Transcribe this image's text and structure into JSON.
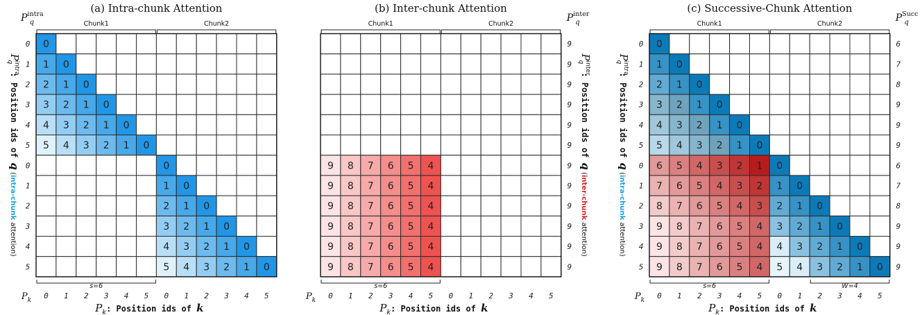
{
  "colors": {
    "intra_light": "#dff1fb",
    "intra_dark": "#2196e6",
    "inter_light": "#fce4e4",
    "inter_dark": "#ef5350",
    "succ_intra_dark": "#0d7ab8",
    "succ_inter_dark": "#b71c1c",
    "grid_border": "#333333",
    "highlight_intra_text": "#1ea3e0",
    "highlight_inter_text": "#d62728"
  },
  "panels": [
    {
      "id": "intra",
      "title": "(a) Intra-chunk Attention",
      "right_label": {
        "main": "P",
        "sub": "q",
        "sup": "intra"
      },
      "chunk_labels": [
        "Chunk1",
        "Chunk2"
      ],
      "row_ids": [
        "0",
        "1",
        "2",
        "3",
        "4",
        "5",
        "0",
        "1",
        "2",
        "3",
        "4",
        "5"
      ],
      "right_ids": [],
      "col_ids": [
        "0",
        "1",
        "2",
        "3",
        "4",
        "5",
        "0",
        "1",
        "2",
        "3",
        "4",
        "5"
      ],
      "y_label": {
        "sub": "q",
        "sup": "intra",
        "mid": ": Position ids of ",
        "var": "q",
        "open": " (",
        "highlight": "intra-chunk",
        "close": " attention)"
      },
      "x_label": {
        "main": "P",
        "sub": "k",
        "mid": ": Position ids of ",
        "var": "k"
      },
      "bottom_brace_label": "s=6",
      "bottom_brace2_label": "",
      "cells": [
        [
          "0",
          "",
          "",
          "",
          "",
          "",
          "",
          "",
          "",
          "",
          "",
          ""
        ],
        [
          "1",
          "0",
          "",
          "",
          "",
          "",
          "",
          "",
          "",
          "",
          "",
          ""
        ],
        [
          "2",
          "1",
          "0",
          "",
          "",
          "",
          "",
          "",
          "",
          "",
          "",
          ""
        ],
        [
          "3",
          "2",
          "1",
          "0",
          "",
          "",
          "",
          "",
          "",
          "",
          "",
          ""
        ],
        [
          "4",
          "3",
          "2",
          "1",
          "0",
          "",
          "",
          "",
          "",
          "",
          "",
          ""
        ],
        [
          "5",
          "4",
          "3",
          "2",
          "1",
          "0",
          "",
          "",
          "",
          "",
          "",
          ""
        ],
        [
          "",
          "",
          "",
          "",
          "",
          "",
          "0",
          "",
          "",
          "",
          "",
          ""
        ],
        [
          "",
          "",
          "",
          "",
          "",
          "",
          "1",
          "0",
          "",
          "",
          "",
          ""
        ],
        [
          "",
          "",
          "",
          "",
          "",
          "",
          "2",
          "1",
          "0",
          "",
          "",
          ""
        ],
        [
          "",
          "",
          "",
          "",
          "",
          "",
          "3",
          "2",
          "1",
          "0",
          "",
          ""
        ],
        [
          "",
          "",
          "",
          "",
          "",
          "",
          "4",
          "3",
          "2",
          "1",
          "0",
          ""
        ],
        [
          "",
          "",
          "",
          "",
          "",
          "",
          "5",
          "4",
          "3",
          "2",
          "1",
          "0"
        ]
      ]
    },
    {
      "id": "inter",
      "title": "(b) Inter-chunk Attention",
      "right_label": {
        "main": "P",
        "sub": "q",
        "sup": "inter"
      },
      "chunk_labels": [
        "Chunk1",
        "Chunk2"
      ],
      "row_ids": [],
      "right_ids": [
        "9",
        "9",
        "9",
        "9",
        "9",
        "9",
        "9",
        "9",
        "9",
        "9",
        "9",
        "9"
      ],
      "col_ids": [
        "0",
        "1",
        "2",
        "3",
        "4",
        "5",
        "0",
        "1",
        "2",
        "3",
        "4",
        "5"
      ],
      "y_label": {
        "sub": "q",
        "sup": "inter",
        "mid": ": Position ids of ",
        "var": "q",
        "open": " (",
        "highlight": "inter-chunk",
        "close": " attention)"
      },
      "x_label": {
        "main": "P",
        "sub": "k",
        "mid": ": Position ids of ",
        "var": "k"
      },
      "bottom_brace_label": "s=6",
      "bottom_brace2_label": "",
      "cells": [
        [
          "",
          "",
          "",
          "",
          "",
          "",
          "",
          "",
          "",
          "",
          "",
          ""
        ],
        [
          "",
          "",
          "",
          "",
          "",
          "",
          "",
          "",
          "",
          "",
          "",
          ""
        ],
        [
          "",
          "",
          "",
          "",
          "",
          "",
          "",
          "",
          "",
          "",
          "",
          ""
        ],
        [
          "",
          "",
          "",
          "",
          "",
          "",
          "",
          "",
          "",
          "",
          "",
          ""
        ],
        [
          "",
          "",
          "",
          "",
          "",
          "",
          "",
          "",
          "",
          "",
          "",
          ""
        ],
        [
          "",
          "",
          "",
          "",
          "",
          "",
          "",
          "",
          "",
          "",
          "",
          ""
        ],
        [
          "9",
          "8",
          "7",
          "6",
          "5",
          "4",
          "",
          "",
          "",
          "",
          "",
          ""
        ],
        [
          "9",
          "8",
          "7",
          "6",
          "5",
          "4",
          "",
          "",
          "",
          "",
          "",
          ""
        ],
        [
          "9",
          "8",
          "7",
          "6",
          "5",
          "4",
          "",
          "",
          "",
          "",
          "",
          ""
        ],
        [
          "9",
          "8",
          "7",
          "6",
          "5",
          "4",
          "",
          "",
          "",
          "",
          "",
          ""
        ],
        [
          "9",
          "8",
          "7",
          "6",
          "5",
          "4",
          "",
          "",
          "",
          "",
          "",
          ""
        ],
        [
          "9",
          "8",
          "7",
          "6",
          "5",
          "4",
          "",
          "",
          "",
          "",
          "",
          ""
        ]
      ]
    },
    {
      "id": "succ",
      "title": "(c) Successive-Chunk Attention",
      "right_label": {
        "main": "P",
        "sub": "q",
        "sup": "Succ"
      },
      "chunk_labels": [
        "Chunk1",
        "Chunk2"
      ],
      "row_ids": [
        "0",
        "1",
        "2",
        "3",
        "4",
        "5",
        "0",
        "1",
        "2",
        "3",
        "4",
        "5"
      ],
      "right_ids": [
        "6",
        "7",
        "8",
        "9",
        "9",
        "9",
        "6",
        "7",
        "8",
        "9",
        "9",
        "9"
      ],
      "col_ids": [
        "0",
        "1",
        "2",
        "3",
        "4",
        "5",
        "0",
        "1",
        "2",
        "3",
        "4",
        "5"
      ],
      "y_label": {
        "sub": "q",
        "sup": "intra",
        "mid": ": Position ids of ",
        "var": "q",
        "open": " (",
        "highlight": "intra-chunk",
        "close": " attention)"
      },
      "x_label": {
        "main": "P",
        "sub": "k",
        "mid": ": Position ids of ",
        "var": "k"
      },
      "bottom_brace_label": "s=6",
      "bottom_brace2_label": "W=4",
      "cells": [
        [
          "0",
          "",
          "",
          "",
          "",
          "",
          "",
          "",
          "",
          "",
          "",
          ""
        ],
        [
          "1",
          "0",
          "",
          "",
          "",
          "",
          "",
          "",
          "",
          "",
          "",
          ""
        ],
        [
          "2",
          "1",
          "0",
          "",
          "",
          "",
          "",
          "",
          "",
          "",
          "",
          ""
        ],
        [
          "3",
          "2",
          "1",
          "0",
          "",
          "",
          "",
          "",
          "",
          "",
          "",
          ""
        ],
        [
          "4",
          "3",
          "2",
          "1",
          "0",
          "",
          "",
          "",
          "",
          "",
          "",
          ""
        ],
        [
          "5",
          "4",
          "3",
          "2",
          "1",
          "0",
          "",
          "",
          "",
          "",
          "",
          ""
        ],
        [
          "6",
          "5",
          "4",
          "3",
          "2",
          "1",
          "0",
          "",
          "",
          "",
          "",
          ""
        ],
        [
          "7",
          "6",
          "5",
          "4",
          "3",
          "2",
          "1",
          "0",
          "",
          "",
          "",
          ""
        ],
        [
          "8",
          "7",
          "6",
          "5",
          "4",
          "3",
          "2",
          "1",
          "0",
          "",
          "",
          ""
        ],
        [
          "9",
          "8",
          "7",
          "6",
          "5",
          "4",
          "3",
          "2",
          "1",
          "0",
          "",
          ""
        ],
        [
          "9",
          "8",
          "7",
          "6",
          "5",
          "4",
          "4",
          "3",
          "2",
          "1",
          "0",
          ""
        ],
        [
          "9",
          "8",
          "7",
          "6",
          "5",
          "4",
          "5",
          "4",
          "3",
          "2",
          "1",
          "0"
        ]
      ]
    }
  ]
}
